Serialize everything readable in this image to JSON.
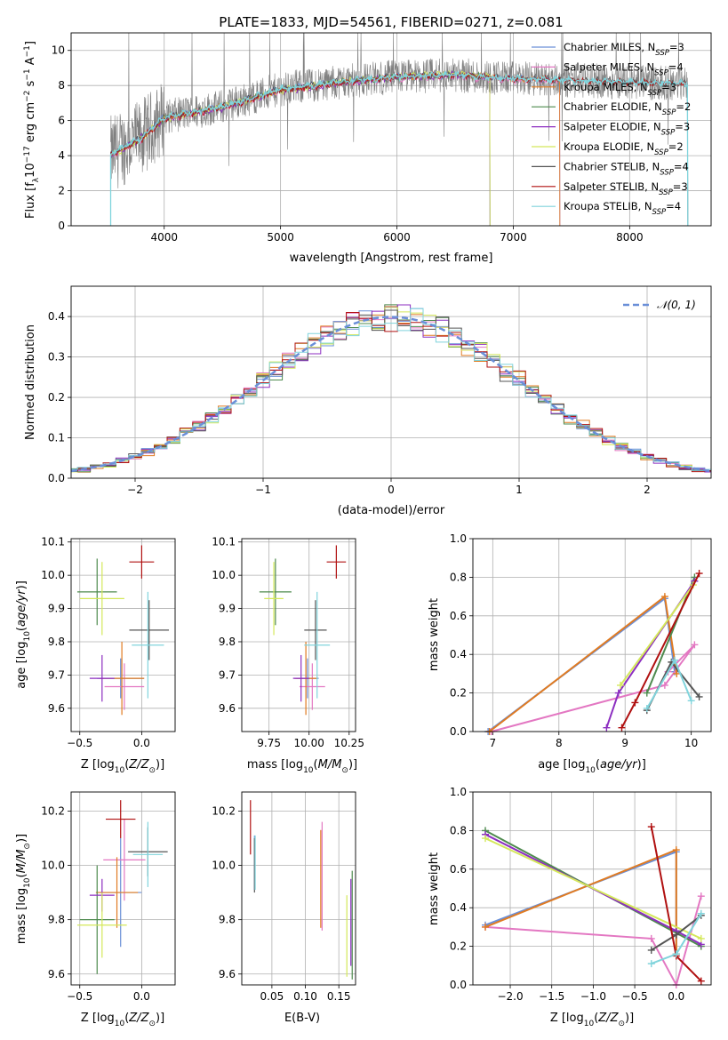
{
  "figure_title": "PLATE=1833, MJD=54561, FIBERID=0271, z=0.081",
  "colors": {
    "Chabrier MILES": "#6a8fd8",
    "Salpeter MILES": "#e377c2",
    "Kroupa MILES": "#e07b22",
    "Chabrier ELODIE": "#4e8a4e",
    "Salpeter ELODIE": "#8c2ec0",
    "Kroupa ELODIE": "#d4e85a",
    "Chabrier STELIB": "#555555",
    "Salpeter STELIB": "#b01010",
    "Kroupa STELIB": "#80d4dc",
    "data": "#808080",
    "normal": "#6a8fd8"
  },
  "chart_data": [
    {
      "id": "spectrum",
      "type": "line",
      "title": "",
      "xlabel": "wavelength [Angstrom, rest frame]",
      "ylabel": "Flux [f_λ10^-17 erg cm^-2 s^-1 A^-1]",
      "xlim": [
        3200,
        8700
      ],
      "ylim": [
        0,
        11
      ],
      "xticks": [
        4000,
        5000,
        6000,
        7000,
        8000
      ],
      "yticks": [
        0,
        2,
        4,
        6,
        8,
        10
      ],
      "legend_position": "right",
      "series": [
        {
          "name": "Chabrier MILES, N_SSP=3",
          "x": [
            3540,
            3600,
            3800,
            4000,
            4500,
            5000,
            5500,
            6000,
            6500,
            7000,
            7400
          ],
          "values": [
            4.1,
            4.3,
            5.0,
            6.2,
            6.8,
            7.8,
            8.2,
            8.5,
            8.6,
            8.4,
            8.3
          ]
        },
        {
          "name": "Salpeter MILES, N_SSP=4",
          "x": [
            3540,
            3600,
            3800,
            4000,
            4500,
            5000,
            5500,
            6000,
            6500,
            7000,
            7400
          ],
          "values": [
            4.0,
            4.2,
            4.9,
            6.1,
            6.7,
            7.7,
            8.1,
            8.4,
            8.5,
            8.3,
            8.2
          ]
        },
        {
          "name": "Kroupa MILES, N_SSP=3",
          "x": [
            3540,
            3600,
            3800,
            4000,
            4500,
            5000,
            5500,
            6000,
            6500,
            7000,
            7400
          ],
          "values": [
            4.1,
            4.3,
            5.0,
            6.2,
            6.8,
            7.8,
            8.2,
            8.5,
            8.6,
            8.4,
            8.3
          ]
        },
        {
          "name": "Chabrier ELODIE, N_SSP=2",
          "x": [
            3540,
            3600,
            3800,
            4000,
            4500,
            5000,
            5500,
            6000,
            6500,
            6800
          ],
          "values": [
            4.0,
            4.2,
            5.0,
            6.1,
            6.8,
            7.7,
            8.2,
            8.5,
            8.6,
            8.5
          ]
        },
        {
          "name": "Salpeter ELODIE, N_SSP=3",
          "x": [
            3540,
            3600,
            3800,
            4000,
            4500,
            5000,
            5500,
            6000,
            6500,
            6800
          ],
          "values": [
            4.0,
            4.2,
            5.0,
            6.1,
            6.7,
            7.7,
            8.1,
            8.5,
            8.6,
            8.5
          ]
        },
        {
          "name": "Kroupa ELODIE, N_SSP=2",
          "x": [
            3540,
            3600,
            3800,
            4000,
            4500,
            5000,
            5500,
            6000,
            6500,
            6800
          ],
          "values": [
            4.0,
            4.2,
            5.0,
            6.1,
            6.8,
            7.7,
            8.2,
            8.5,
            8.7,
            8.5
          ]
        },
        {
          "name": "Chabrier STELIB, N_SSP=4",
          "x": [
            3540,
            3600,
            3800,
            4000,
            4500,
            5000,
            5500,
            6000,
            6500,
            7000,
            7500,
            8000,
            8500
          ],
          "values": [
            4.1,
            4.3,
            5.0,
            6.2,
            6.8,
            7.8,
            8.2,
            8.5,
            8.6,
            8.4,
            8.3,
            8.2,
            8.1
          ]
        },
        {
          "name": "Salpeter STELIB, N_SSP=3",
          "x": [
            3540,
            3600,
            3800,
            4000,
            4500,
            5000,
            5500,
            6000,
            6500,
            7000,
            7500,
            8000,
            8500
          ],
          "values": [
            4.0,
            4.2,
            4.9,
            6.1,
            6.7,
            7.7,
            8.1,
            8.5,
            8.6,
            8.4,
            8.3,
            8.2,
            8.1
          ]
        },
        {
          "name": "Kroupa STELIB, N_SSP=4",
          "x": [
            3540,
            3600,
            3800,
            4000,
            4500,
            5000,
            5500,
            6000,
            6500,
            7000,
            7500,
            8000,
            8500
          ],
          "values": [
            4.1,
            4.3,
            5.0,
            6.2,
            6.8,
            7.8,
            8.2,
            8.5,
            8.6,
            8.4,
            8.3,
            8.2,
            8.1
          ]
        }
      ]
    },
    {
      "id": "residuals",
      "type": "line",
      "xlabel": "(data-model)/error",
      "ylabel": "Normed distribution",
      "xlim": [
        -2.5,
        2.5
      ],
      "ylim": [
        0,
        0.475
      ],
      "xticks": [
        -2,
        -1,
        0,
        1,
        2
      ],
      "yticks": [
        0.0,
        0.1,
        0.2,
        0.3,
        0.4
      ],
      "legend": [
        "N(0,1)"
      ],
      "legend_position": "top-right",
      "bin_width": 0.1
    },
    {
      "id": "z_age",
      "type": "scatter",
      "xlabel": "Z [log10(Z/Z_sun)]",
      "ylabel": "age [log10(age/yr)]",
      "xlim": [
        -0.57,
        0.27
      ],
      "ylim": [
        9.53,
        10.11
      ],
      "xticks": [
        -0.5,
        0.0
      ],
      "yticks": [
        9.6,
        9.7,
        9.8,
        9.9,
        10.0,
        10.1
      ],
      "points": [
        {
          "name": "Chabrier MILES",
          "x": -0.17,
          "y": 9.69,
          "xerr": 0.19,
          "yerr": 0.06
        },
        {
          "name": "Salpeter MILES",
          "x": -0.14,
          "y": 9.665,
          "xerr": 0.16,
          "yerr": 0.07
        },
        {
          "name": "Kroupa MILES",
          "x": -0.16,
          "y": 9.69,
          "xerr": 0.18,
          "yerr": 0.11
        },
        {
          "name": "Chabrier ELODIE",
          "x": -0.36,
          "y": 9.95,
          "xerr": 0.16,
          "yerr": 0.1
        },
        {
          "name": "Salpeter ELODIE",
          "x": -0.32,
          "y": 9.69,
          "xerr": 0.1,
          "yerr": 0.07
        },
        {
          "name": "Kroupa ELODIE",
          "x": -0.32,
          "y": 9.93,
          "xerr": 0.18,
          "yerr": 0.11
        },
        {
          "name": "Chabrier STELIB",
          "x": 0.06,
          "y": 9.835,
          "xerr": 0.16,
          "yerr": 0.09
        },
        {
          "name": "Salpeter STELIB",
          "x": 0.0,
          "y": 10.04,
          "xerr": 0.1,
          "yerr": 0.05
        },
        {
          "name": "Kroupa STELIB",
          "x": 0.05,
          "y": 9.79,
          "xerr": 0.13,
          "yerr": 0.16
        }
      ]
    },
    {
      "id": "mass_age",
      "type": "scatter",
      "xlabel": "mass [log10(M/M_sun)]",
      "xlim": [
        9.58,
        10.29
      ],
      "ylim": [
        9.53,
        10.11
      ],
      "xticks": [
        9.75,
        10.0,
        10.25
      ],
      "yticks": [
        9.6,
        9.7,
        9.8,
        9.9,
        10.0,
        10.1
      ],
      "points": [
        {
          "name": "Chabrier MILES",
          "x": 9.99,
          "y": 9.69,
          "xerr": 0.07,
          "yerr": 0.06
        },
        {
          "name": "Salpeter MILES",
          "x": 10.02,
          "y": 9.665,
          "xerr": 0.08,
          "yerr": 0.07
        },
        {
          "name": "Kroupa MILES",
          "x": 9.98,
          "y": 9.69,
          "xerr": 0.07,
          "yerr": 0.11
        },
        {
          "name": "Chabrier ELODIE",
          "x": 9.79,
          "y": 9.95,
          "xerr": 0.1,
          "yerr": 0.1
        },
        {
          "name": "Salpeter ELODIE",
          "x": 9.95,
          "y": 9.69,
          "xerr": 0.05,
          "yerr": 0.07
        },
        {
          "name": "Kroupa ELODIE",
          "x": 9.78,
          "y": 9.93,
          "xerr": 0.06,
          "yerr": 0.11
        },
        {
          "name": "Chabrier STELIB",
          "x": 10.04,
          "y": 9.835,
          "xerr": 0.07,
          "yerr": 0.09
        },
        {
          "name": "Salpeter STELIB",
          "x": 10.17,
          "y": 10.04,
          "xerr": 0.06,
          "yerr": 0.05
        },
        {
          "name": "Kroupa STELIB",
          "x": 10.05,
          "y": 9.79,
          "xerr": 0.08,
          "yerr": 0.16
        }
      ]
    },
    {
      "id": "age_weight",
      "type": "line",
      "xlabel": "age [log10(age/yr)]",
      "ylabel": "mass weight",
      "xlim": [
        6.7,
        10.3
      ],
      "ylim": [
        0,
        1.0
      ],
      "xticks": [
        7,
        8,
        9,
        10
      ],
      "yticks": [
        0.0,
        0.2,
        0.4,
        0.6,
        0.8,
        1.0
      ],
      "series": [
        {
          "name": "Chabrier MILES",
          "x": [
            6.93,
            9.6,
            9.75
          ],
          "values": [
            0.0,
            0.69,
            0.31
          ]
        },
        {
          "name": "Salpeter MILES",
          "x": [
            6.98,
            9.6,
            10.05,
            9.65
          ],
          "values": [
            0.0,
            0.24,
            0.45,
            0.31
          ]
        },
        {
          "name": "Kroupa MILES",
          "x": [
            6.95,
            9.6,
            9.78
          ],
          "values": [
            0.0,
            0.7,
            0.3
          ]
        },
        {
          "name": "Chabrier ELODIE",
          "x": [
            9.33,
            10.05
          ],
          "values": [
            0.2,
            0.8
          ]
        },
        {
          "name": "Salpeter ELODIE",
          "x": [
            8.72,
            8.9,
            10.05
          ],
          "values": [
            0.02,
            0.2,
            0.78
          ]
        },
        {
          "name": "Kroupa ELODIE",
          "x": [
            8.93,
            10.03
          ],
          "values": [
            0.24,
            0.76
          ]
        },
        {
          "name": "Chabrier STELIB",
          "x": [
            9.33,
            9.7,
            10.12
          ],
          "values": [
            0.11,
            0.36,
            0.18
          ]
        },
        {
          "name": "Salpeter STELIB",
          "x": [
            8.95,
            9.15,
            10.12
          ],
          "values": [
            0.02,
            0.15,
            0.82
          ]
        },
        {
          "name": "Kroupa STELIB",
          "x": [
            9.33,
            9.75,
            10.0
          ],
          "values": [
            0.12,
            0.37,
            0.16
          ]
        }
      ]
    },
    {
      "id": "z_mass",
      "type": "scatter",
      "xlabel": "Z [log10(Z/Z_sun)]",
      "ylabel": "mass [log10(M/M_sun)]",
      "xlim": [
        -0.57,
        0.27
      ],
      "ylim": [
        9.56,
        10.27
      ],
      "xticks": [
        -0.5,
        0.0
      ],
      "yticks": [
        9.6,
        9.8,
        10.0,
        10.2
      ],
      "points": [
        {
          "name": "Chabrier MILES",
          "x": -0.17,
          "y": 9.9,
          "xerr": 0.17,
          "yerr": 0.2
        },
        {
          "name": "Salpeter MILES",
          "x": -0.14,
          "y": 10.02,
          "xerr": 0.17,
          "yerr": 0.15
        },
        {
          "name": "Kroupa MILES",
          "x": -0.2,
          "y": 9.9,
          "xerr": 0.17,
          "yerr": 0.13
        },
        {
          "name": "Chabrier ELODIE",
          "x": -0.36,
          "y": 9.8,
          "xerr": 0.14,
          "yerr": 0.2
        },
        {
          "name": "Salpeter ELODIE",
          "x": -0.32,
          "y": 9.89,
          "xerr": 0.1,
          "yerr": 0.06
        },
        {
          "name": "Kroupa ELODIE",
          "x": -0.32,
          "y": 9.78,
          "xerr": 0.2,
          "yerr": 0.12
        },
        {
          "name": "Chabrier STELIB",
          "x": 0.05,
          "y": 10.05,
          "xerr": 0.16,
          "yerr": 0.09
        },
        {
          "name": "Salpeter STELIB",
          "x": -0.17,
          "y": 10.17,
          "xerr": 0.12,
          "yerr": 0.07
        },
        {
          "name": "Kroupa STELIB",
          "x": 0.05,
          "y": 10.04,
          "xerr": 0.12,
          "yerr": 0.12
        }
      ]
    },
    {
      "id": "ebv_mass",
      "type": "scatter",
      "xlabel": "E(B-V)",
      "xlim": [
        0.005,
        0.175
      ],
      "ylim": [
        9.56,
        10.27
      ],
      "xticks": [
        0.05,
        0.1,
        0.15
      ],
      "yticks": [
        9.6,
        9.8,
        10.0,
        10.2
      ],
      "points": [
        {
          "name": "Chabrier MILES",
          "x": 0.024,
          "y": 10.01,
          "yerr": 0.1
        },
        {
          "name": "Salpeter MILES",
          "x": 0.125,
          "y": 9.96,
          "yerr": 0.2
        },
        {
          "name": "Kroupa MILES",
          "x": 0.123,
          "y": 9.95,
          "yerr": 0.18
        },
        {
          "name": "Chabrier ELODIE",
          "x": 0.17,
          "y": 9.78,
          "yerr": 0.2
        },
        {
          "name": "Salpeter ELODIE",
          "x": 0.168,
          "y": 9.79,
          "yerr": 0.16
        },
        {
          "name": "Kroupa ELODIE",
          "x": 0.162,
          "y": 9.74,
          "yerr": 0.15
        },
        {
          "name": "Chabrier STELIB",
          "x": 0.024,
          "y": 10.0,
          "yerr": 0.1
        },
        {
          "name": "Salpeter STELIB",
          "x": 0.018,
          "y": 10.14,
          "yerr": 0.1
        },
        {
          "name": "Kroupa STELIB",
          "x": 0.025,
          "y": 10.01,
          "yerr": 0.1
        }
      ]
    },
    {
      "id": "z_weight",
      "type": "line",
      "xlabel": "Z [log10(Z/Z_sun)]",
      "ylabel": "mass weight",
      "xlim": [
        -2.45,
        0.42
      ],
      "ylim": [
        0,
        1.0
      ],
      "xticks": [
        -2.0,
        -1.5,
        -1.0,
        -0.5,
        0.0
      ],
      "yticks": [
        0.0,
        0.2,
        0.4,
        0.6,
        0.8,
        1.0
      ],
      "series": [
        {
          "name": "Chabrier MILES",
          "x": [
            -2.3,
            0.0,
            0.0
          ],
          "values": [
            0.31,
            0.69,
            0.16
          ]
        },
        {
          "name": "Salpeter MILES",
          "x": [
            -2.3,
            -0.3,
            0.0,
            0.3
          ],
          "values": [
            0.3,
            0.24,
            0.0,
            0.46
          ]
        },
        {
          "name": "Kroupa MILES",
          "x": [
            -2.3,
            0.0,
            0.0
          ],
          "values": [
            0.3,
            0.7,
            0.16
          ]
        },
        {
          "name": "Chabrier ELODIE",
          "x": [
            -2.3,
            0.3
          ],
          "values": [
            0.8,
            0.2
          ]
        },
        {
          "name": "Salpeter ELODIE",
          "x": [
            -2.3,
            0.0,
            0.3
          ],
          "values": [
            0.78,
            0.28,
            0.21
          ]
        },
        {
          "name": "Kroupa ELODIE",
          "x": [
            -2.3,
            0.3
          ],
          "values": [
            0.76,
            0.24
          ]
        },
        {
          "name": "Chabrier STELIB",
          "x": [
            -0.3,
            0.0,
            0.3
          ],
          "values": [
            0.18,
            0.26,
            0.36
          ]
        },
        {
          "name": "Salpeter STELIB",
          "x": [
            -0.3,
            0.0,
            0.3
          ],
          "values": [
            0.82,
            0.15,
            0.02
          ]
        },
        {
          "name": "Kroupa STELIB",
          "x": [
            -0.3,
            0.0,
            0.3
          ],
          "values": [
            0.11,
            0.16,
            0.37
          ]
        }
      ]
    }
  ]
}
